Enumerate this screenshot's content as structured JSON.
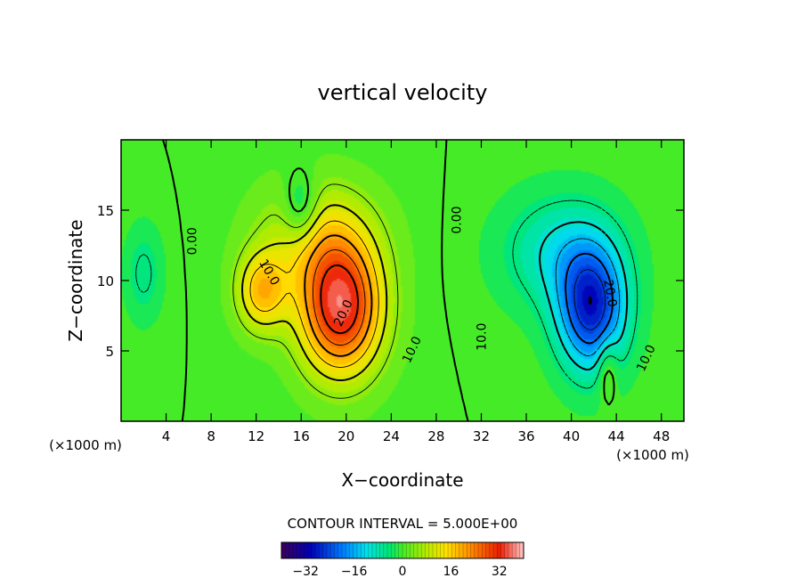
{
  "chart_data": {
    "type": "heatmap",
    "title": "vertical velocity",
    "xlabel": "X−coordinate",
    "ylabel": "Z−coordinate",
    "x_unit_left": "(×1000 m)",
    "x_unit_right": "(×1000 m)",
    "xlim": [
      0,
      50
    ],
    "ylim": [
      0,
      20
    ],
    "x_ticks": [
      4,
      8,
      12,
      16,
      20,
      24,
      28,
      32,
      36,
      40,
      44,
      48
    ],
    "x_tick_labels": [
      "4",
      "8",
      "12",
      "16",
      "20",
      "24",
      "28",
      "32",
      "36",
      "40",
      "44",
      "48"
    ],
    "y_ticks": [
      5,
      10,
      15
    ],
    "y_tick_labels": [
      "5",
      "10",
      "15"
    ],
    "contour_interval_text": "CONTOUR INTERVAL = 5.000E+00",
    "contour_interval": 5.0,
    "features": [
      {
        "name": "updraft",
        "center_x": 19.5,
        "center_z": 8.0,
        "peak": 34
      },
      {
        "name": "secondary-updraft",
        "center_x": 12.5,
        "center_z": 9.0,
        "peak": 18
      },
      {
        "name": "downdraft",
        "center_x": 42.0,
        "center_z": 8.5,
        "peak": -28
      }
    ],
    "contour_labels": [
      {
        "text": "0.00",
        "x": 6.3,
        "z": 12.8,
        "angle": -90
      },
      {
        "text": "0.00",
        "x": 29.8,
        "z": 14.3,
        "angle": -90
      },
      {
        "text": "10.0",
        "x": 13.2,
        "z": 10.6,
        "angle": 60
      },
      {
        "text": "20.0",
        "x": 19.7,
        "z": 7.7,
        "angle": -65
      },
      {
        "text": "10.0",
        "x": 25.8,
        "z": 5.1,
        "angle": -65
      },
      {
        "text": "10.0",
        "x": 32.0,
        "z": 6.0,
        "angle": -90
      },
      {
        "text": "20.0",
        "x": 43.5,
        "z": 9.1,
        "angle": 80
      },
      {
        "text": "10.0",
        "x": 46.6,
        "z": 4.5,
        "angle": -65
      }
    ],
    "colorbar": {
      "range": [
        -40,
        40
      ],
      "ticks": [
        -32,
        -16,
        0,
        16,
        32
      ],
      "tick_labels": [
        "−32",
        "−16",
        "0",
        "16",
        "32"
      ]
    },
    "colors": {
      "background": "#ffffff",
      "axis": "#000000"
    }
  }
}
